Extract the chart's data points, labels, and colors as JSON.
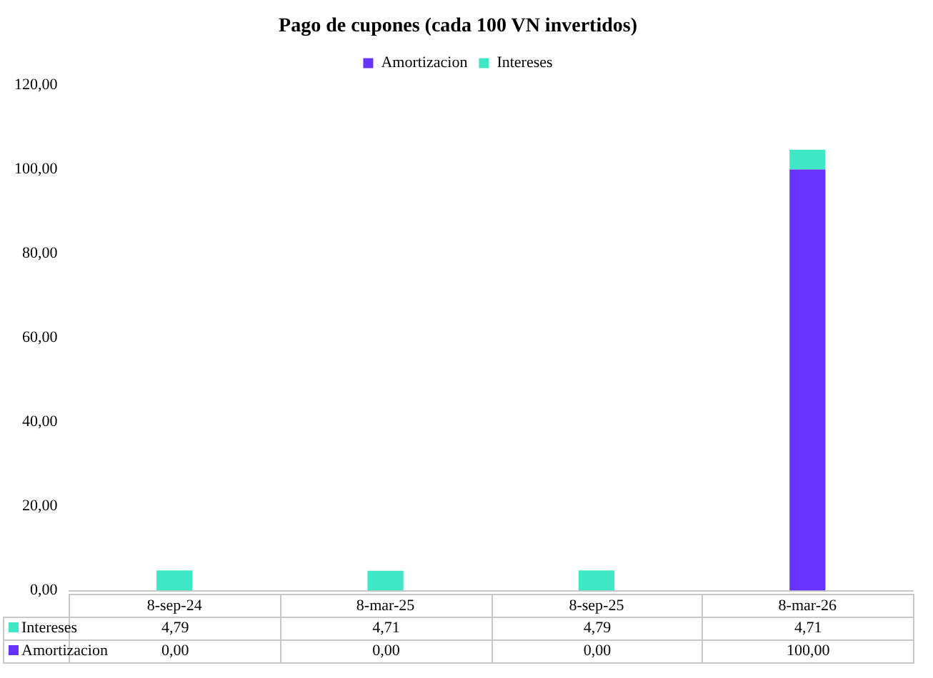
{
  "chart_data": {
    "type": "bar",
    "title": "Pago de cupones (cada 100 VN invertidos)",
    "categories": [
      "8-sep-24",
      "8-mar-25",
      "8-sep-25",
      "8-mar-26"
    ],
    "stacked": true,
    "series": [
      {
        "name": "Amortizacion",
        "color": "#6633ff",
        "values": [
          0,
          0,
          0,
          100
        ],
        "value_labels": [
          "0,00",
          "0,00",
          "0,00",
          "100,00"
        ]
      },
      {
        "name": "Intereses",
        "color": "#3ee8c4",
        "values": [
          4.79,
          4.71,
          4.79,
          4.71
        ],
        "value_labels": [
          "4,79",
          "4,71",
          "4,79",
          "4,71"
        ]
      }
    ],
    "ylim": [
      0,
      120
    ],
    "yticks": [
      {
        "value": 0,
        "label": "0,00"
      },
      {
        "value": 20,
        "label": "20,00"
      },
      {
        "value": 40,
        "label": "40,00"
      },
      {
        "value": 60,
        "label": "60,00"
      },
      {
        "value": 80,
        "label": "80,00"
      },
      {
        "value": 100,
        "label": "100,00"
      },
      {
        "value": 120,
        "label": "120,00"
      }
    ],
    "grid": false,
    "legend": "top"
  }
}
